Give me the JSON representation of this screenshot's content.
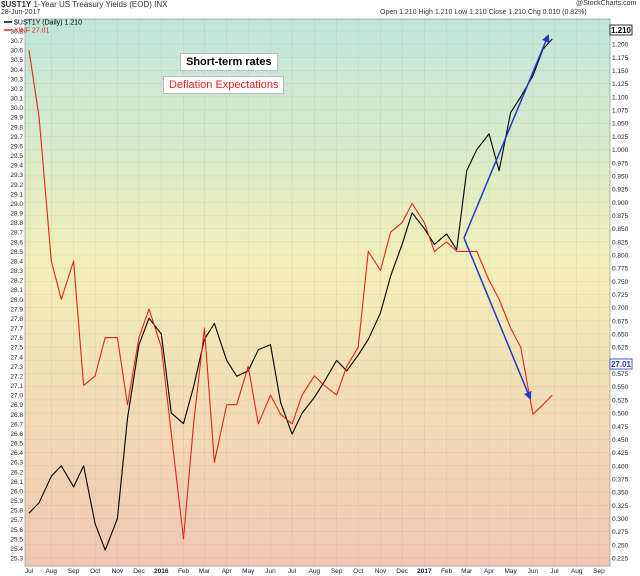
{
  "header": {
    "ticker": "$UST1Y",
    "title": "1-Year US Treasury Yields (EOD) INX",
    "date": "28-Jun-2017",
    "quote": "Open 1.210  High 1.210  Low 1.210  Close 1.210  Chg 0.010 (0.82%)",
    "watermark": "@StockCharts.com"
  },
  "legend": [
    {
      "label": "$UST1Y (Daily) 1.210",
      "color": "#000000"
    },
    {
      "label": "XINF 27.01",
      "color": "#e8231b"
    }
  ],
  "annotations": {
    "short_term": "Short-term rates",
    "deflation": "Deflation Expectations"
  },
  "colors": {
    "black_series": "#000000",
    "red_series": "#e8231b",
    "arrow": "#1d39c9",
    "bg_top": "#bfe6dc",
    "bg_mid": "#f3efb9",
    "bg_bottom": "#f1c7b3"
  },
  "chart_data": {
    "type": "line",
    "x_ticks": [
      "Jul",
      "Aug",
      "Sep",
      "Oct",
      "Nov",
      "Dec",
      "2016",
      "Feb",
      "Mar",
      "Apr",
      "May",
      "Jun",
      "Jul",
      "Aug",
      "Sep",
      "Oct",
      "Nov",
      "Dec",
      "2017",
      "Feb",
      "Mar",
      "Apr",
      "May",
      "Jun",
      "Jul",
      "Aug",
      "Sep"
    ],
    "left_axis": {
      "ticks": [
        "30.8",
        "30.7",
        "30.6",
        "30.5",
        "30.4",
        "30.3",
        "30.2",
        "30.1",
        "30.0",
        "29.9",
        "29.8",
        "29.7",
        "29.6",
        "29.5",
        "29.4",
        "29.3",
        "29.2",
        "29.1",
        "29.0",
        "28.9",
        "28.8",
        "28.7",
        "28.6",
        "28.5",
        "28.4",
        "28.3",
        "28.2",
        "28.1",
        "28.0",
        "27.9",
        "27.8",
        "27.7",
        "27.6",
        "27.5",
        "27.4",
        "27.3",
        "27.2",
        "27.1",
        "27.0",
        "26.9",
        "26.8",
        "26.7",
        "26.6",
        "26.5",
        "26.4",
        "26.3",
        "26.2",
        "26.1",
        "26.0",
        "25.9",
        "25.8",
        "25.7",
        "25.6",
        "25.5",
        "25.4",
        "25.3"
      ],
      "range": [
        25.3,
        30.8
      ]
    },
    "right_axis": {
      "ticks": [
        "1.225",
        "1.200",
        "1.175",
        "1.150",
        "1.125",
        "1.100",
        "1.075",
        "1.050",
        "1.025",
        "1.000",
        "0.975",
        "0.950",
        "0.925",
        "0.900",
        "0.875",
        "0.850",
        "0.825",
        "0.800",
        "0.775",
        "0.750",
        "0.725",
        "0.700",
        "0.675",
        "0.650",
        "0.625",
        "0.600",
        "0.575",
        "0.550",
        "0.525",
        "0.500",
        "0.475",
        "0.450",
        "0.425",
        "0.400",
        "0.375",
        "0.350",
        "0.325",
        "0.300",
        "0.275",
        "0.250",
        "0.225"
      ],
      "range": [
        0.225,
        1.225
      ],
      "last_value_label": "1.210",
      "last_value_label_2": "27.01"
    },
    "series": [
      {
        "name": "$UST1Y (Daily) 1.210",
        "axis": "right",
        "x": [
          "2015-07-01",
          "2015-07-15",
          "2015-08-01",
          "2015-08-15",
          "2015-09-01",
          "2015-09-15",
          "2015-10-01",
          "2015-10-15",
          "2015-11-01",
          "2015-11-15",
          "2015-12-01",
          "2015-12-15",
          "2016-01-01",
          "2016-01-15",
          "2016-02-01",
          "2016-02-15",
          "2016-03-01",
          "2016-03-15",
          "2016-04-01",
          "2016-04-15",
          "2016-05-01",
          "2016-05-15",
          "2016-06-01",
          "2016-06-15",
          "2016-07-01",
          "2016-07-15",
          "2016-08-01",
          "2016-08-15",
          "2016-09-01",
          "2016-09-15",
          "2016-10-01",
          "2016-10-15",
          "2016-11-01",
          "2016-11-15",
          "2016-12-01",
          "2016-12-15",
          "2017-01-01",
          "2017-01-15",
          "2017-02-01",
          "2017-02-15",
          "2017-03-01",
          "2017-03-15",
          "2017-04-01",
          "2017-04-15",
          "2017-05-01",
          "2017-05-15",
          "2017-06-01",
          "2017-06-15",
          "2017-06-28"
        ],
        "values": [
          0.31,
          0.33,
          0.38,
          0.4,
          0.36,
          0.4,
          0.29,
          0.24,
          0.3,
          0.49,
          0.63,
          0.68,
          0.65,
          0.5,
          0.48,
          0.55,
          0.64,
          0.67,
          0.6,
          0.57,
          0.58,
          0.62,
          0.63,
          0.52,
          0.46,
          0.5,
          0.53,
          0.56,
          0.6,
          0.58,
          0.61,
          0.64,
          0.69,
          0.76,
          0.82,
          0.88,
          0.85,
          0.82,
          0.84,
          0.81,
          0.96,
          1.0,
          1.03,
          0.96,
          1.07,
          1.1,
          1.14,
          1.19,
          1.21
        ]
      },
      {
        "name": "XINF 27.01",
        "axis": "left",
        "x": [
          "2015-07-01",
          "2015-07-15",
          "2015-08-01",
          "2015-08-15",
          "2015-09-01",
          "2015-09-15",
          "2015-10-01",
          "2015-10-15",
          "2015-11-01",
          "2015-11-15",
          "2015-12-01",
          "2015-12-15",
          "2016-01-01",
          "2016-01-15",
          "2016-02-01",
          "2016-02-15",
          "2016-03-01",
          "2016-03-15",
          "2016-04-01",
          "2016-04-15",
          "2016-05-01",
          "2016-05-15",
          "2016-06-01",
          "2016-06-15",
          "2016-07-01",
          "2016-07-15",
          "2016-08-01",
          "2016-08-15",
          "2016-09-01",
          "2016-09-15",
          "2016-10-01",
          "2016-10-15",
          "2016-11-01",
          "2016-11-15",
          "2016-12-01",
          "2016-12-15",
          "2017-01-01",
          "2017-01-15",
          "2017-02-01",
          "2017-02-15",
          "2017-03-01",
          "2017-03-15",
          "2017-04-01",
          "2017-04-15",
          "2017-05-01",
          "2017-05-15",
          "2017-06-01",
          "2017-06-15",
          "2017-06-28"
        ],
        "values": [
          30.6,
          29.9,
          28.4,
          28.0,
          28.4,
          27.1,
          27.2,
          27.6,
          27.6,
          26.9,
          27.6,
          27.9,
          27.5,
          26.6,
          25.5,
          26.7,
          27.7,
          26.3,
          26.9,
          26.9,
          27.3,
          26.7,
          27.0,
          26.8,
          26.7,
          27.0,
          27.2,
          27.1,
          27.0,
          27.3,
          27.5,
          28.5,
          28.3,
          28.7,
          28.8,
          29.0,
          28.8,
          28.5,
          28.6,
          28.5,
          28.5,
          28.5,
          28.2,
          28.0,
          27.7,
          27.5,
          26.8,
          26.9,
          27.0
        ]
      }
    ]
  }
}
